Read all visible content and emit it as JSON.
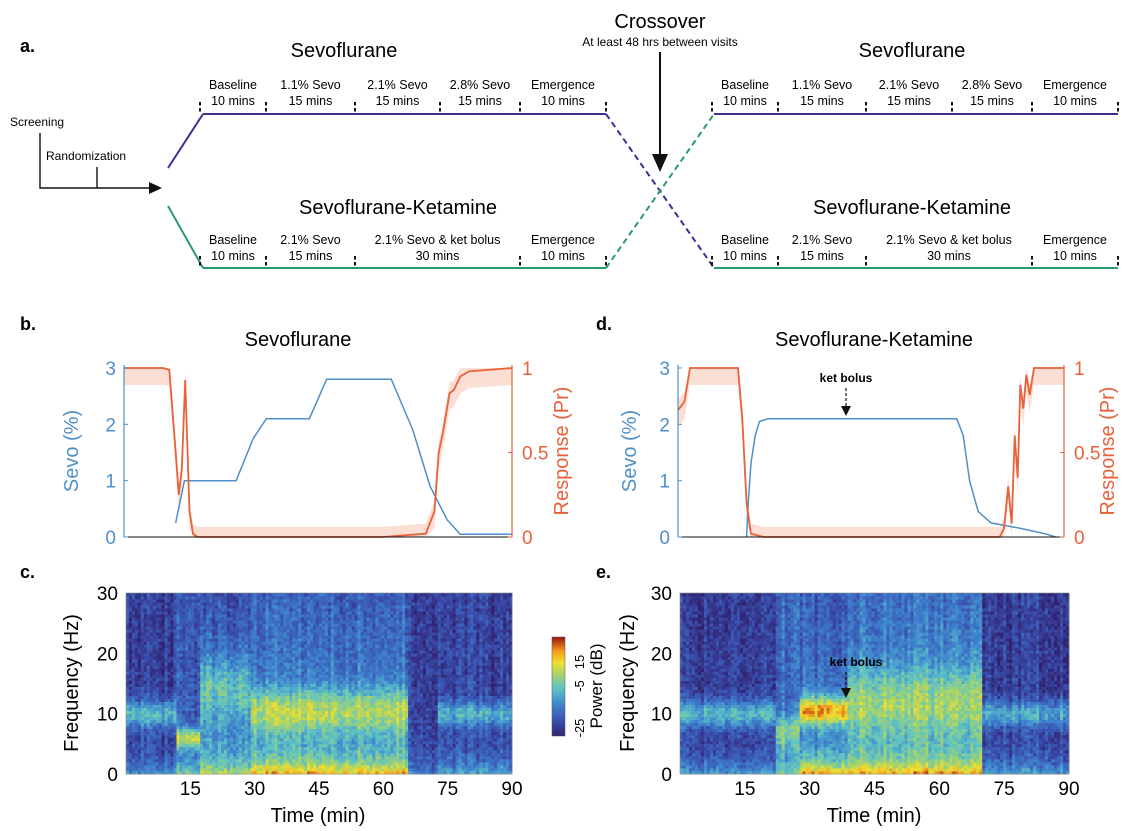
{
  "panel_a": {
    "panel_label": "a.",
    "screening": "Screening",
    "randomization": "Randomization",
    "crossover_title": "Crossover",
    "crossover_subtitle": "At least 48 hrs between visits",
    "sevo_title": "Sevoflurane",
    "sevoket_title": "Sevoflurane-Ketamine",
    "sevo_segments": [
      {
        "name": "Baseline",
        "dur": "10 mins"
      },
      {
        "name": "1.1% Sevo",
        "dur": "15 mins"
      },
      {
        "name": "2.1% Sevo",
        "dur": "15 mins"
      },
      {
        "name": "2.8% Sevo",
        "dur": "15 mins"
      },
      {
        "name": "Emergence",
        "dur": "10 mins"
      }
    ],
    "sevoket_segments": [
      {
        "name": "Baseline",
        "dur": "10 mins"
      },
      {
        "name": "2.1% Sevo",
        "dur": "15 mins"
      },
      {
        "name": "2.1% Sevo & ket bolus",
        "dur": "30 mins"
      },
      {
        "name": "Emergence",
        "dur": "10 mins"
      }
    ],
    "colors": {
      "sevo_arm": "#3d2f8f",
      "ket_arm": "#2a9b6a"
    }
  },
  "panels": {
    "b": {
      "label": "b.",
      "title": "Sevoflurane"
    },
    "c": {
      "label": "c."
    },
    "d": {
      "label": "d.",
      "title": "Sevoflurane-Ketamine",
      "annotation": "ket bolus"
    },
    "e": {
      "label": "e.",
      "annotation": "ket bolus"
    }
  },
  "colorbar": {
    "label": "Power (dB)",
    "ticks": [
      "-25",
      "-5",
      "15"
    ]
  },
  "colors": {
    "sevo": "#4f8fc8",
    "response": "#e8613a",
    "response_band": "#fbd9cc"
  },
  "chart_data": [
    {
      "id": "b",
      "type": "line",
      "title": "Sevoflurane",
      "xlim": [
        0,
        90
      ],
      "ylabel_left": "Sevo (%)",
      "ylabel_right": "Response  (Pr)",
      "ylim_left": [
        0,
        3
      ],
      "ylim_right": [
        0,
        1
      ],
      "yticks_left": [
        "0",
        "1",
        "2",
        "3"
      ],
      "yticks_right": [
        "0",
        "0.5",
        "1"
      ],
      "series": [
        {
          "name": "Sevo (%)",
          "axis": "left",
          "x": [
            12,
            14,
            20,
            26,
            30,
            33,
            40,
            43,
            47,
            60,
            62,
            67,
            71,
            75,
            78,
            90
          ],
          "y": [
            0.25,
            1.0,
            1.0,
            1.0,
            1.75,
            2.1,
            2.1,
            2.1,
            2.8,
            2.8,
            2.8,
            1.9,
            0.9,
            0.3,
            0.05,
            0.05
          ]
        },
        {
          "name": "Response  (Pr)",
          "axis": "right",
          "x": [
            0,
            9,
            10.5,
            12,
            12.7,
            13.4,
            14.2,
            15.2,
            16,
            17,
            22,
            60,
            70,
            72,
            73,
            74,
            75.5,
            76.5,
            78,
            80,
            90
          ],
          "y": [
            1,
            1,
            0.99,
            0.5,
            0.25,
            0.4,
            0.93,
            0.15,
            0.02,
            0,
            0,
            0,
            0.02,
            0.15,
            0.5,
            0.62,
            0.85,
            0.87,
            0.95,
            0.98,
            1
          ]
        }
      ]
    },
    {
      "id": "d",
      "type": "line",
      "title": "Sevoflurane-Ketamine",
      "xlim": [
        0,
        90
      ],
      "ylabel_left": "Sevo (%)",
      "ylabel_right": "Response  (Pr)",
      "ylim_left": [
        0,
        3
      ],
      "ylim_right": [
        0,
        1
      ],
      "yticks_left": [
        "0",
        "1",
        "2",
        "3"
      ],
      "yticks_right": [
        "0",
        "0.5",
        "1"
      ],
      "series": [
        {
          "name": "Sevo (%)",
          "axis": "left",
          "x": [
            16,
            16.3,
            17,
            18,
            19,
            21,
            65,
            66.5,
            68,
            70,
            73,
            80,
            86,
            88
          ],
          "y": [
            0,
            0.5,
            1.3,
            1.8,
            2.05,
            2.1,
            2.1,
            1.8,
            1.0,
            0.45,
            0.25,
            0.15,
            0.05,
            0
          ]
        },
        {
          "name": "Response  (Pr)",
          "axis": "right",
          "x": [
            0,
            1.5,
            2.8,
            6,
            12,
            14,
            15,
            16,
            17,
            20,
            75,
            76,
            77,
            77.8,
            78.5,
            79.2,
            79.8,
            80.5,
            81.2,
            82,
            83,
            84,
            90
          ],
          "y": [
            0.75,
            0.8,
            1,
            1,
            1,
            1,
            0.7,
            0.2,
            0.02,
            0,
            0,
            0.05,
            0.3,
            0.08,
            0.6,
            0.35,
            0.9,
            0.76,
            0.96,
            0.84,
            1,
            1,
            1
          ]
        }
      ]
    },
    {
      "id": "c",
      "type": "heatmap",
      "xlabel": "Time (min)",
      "ylabel": "Frequency (Hz)",
      "xlim": [
        0,
        90
      ],
      "ylim": [
        0,
        30
      ],
      "xticks": [
        "15",
        "30",
        "45",
        "60",
        "75",
        "90"
      ],
      "yticks": [
        "0",
        "10",
        "20",
        "30"
      ],
      "colorbar_range_db": [
        -25,
        15
      ]
    },
    {
      "id": "e",
      "type": "heatmap",
      "xlabel": "Time (min)",
      "ylabel": "Frequency (Hz)",
      "xlim": [
        0,
        90
      ],
      "ylim": [
        0,
        30
      ],
      "xticks": [
        "15",
        "30",
        "45",
        "60",
        "75",
        "90"
      ],
      "yticks": [
        "0",
        "10",
        "20",
        "30"
      ],
      "annotation_time_min": 39
    }
  ]
}
